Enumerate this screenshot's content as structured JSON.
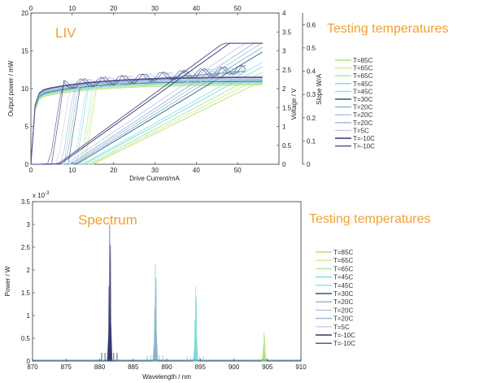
{
  "colors": {
    "accent": "#f0a030",
    "series": [
      "#b8e07a",
      "#d6e98a",
      "#a8e6a8",
      "#80d8d8",
      "#86e6ea",
      "#1f5f80",
      "#8ab4cc",
      "#a8c4e0",
      "#9ab8d8",
      "#c8c8ec",
      "#34366e",
      "#4a4a90"
    ]
  },
  "chart_data": [
    {
      "type": "line",
      "title": "LIV",
      "annotation": "Testing temperatures",
      "xlabel": "Drive Current/mA",
      "ylabel": "Output power / mW",
      "ylabel_right1": "Voltage / V",
      "ylabel_right2": "Slope W/A",
      "xlim": [
        0,
        60
      ],
      "ylim": [
        0,
        20
      ],
      "ylim_right1": [
        0,
        4
      ],
      "ylim_right2": [
        0,
        0.65
      ],
      "x_ticks": [
        "0",
        "10",
        "20",
        "30",
        "40",
        "50"
      ],
      "x_ticks_top": [
        "0",
        "10",
        "20",
        "30",
        "40",
        "50"
      ],
      "y_ticks": [
        "0",
        "5",
        "10",
        "15",
        "20"
      ],
      "y_ticks_right1": [
        "0",
        "0.5",
        "1",
        "1.5",
        "2",
        "2.5",
        "3",
        "3.5",
        "4"
      ],
      "y_ticks_right2": [
        "0",
        "0.1",
        "0.2",
        "0.3",
        "0.4",
        "0.5",
        "0.6"
      ],
      "legend": [
        "T=85C",
        "T=65C",
        "T=65C",
        "T=45C",
        "T=45C",
        "T=30C",
        "T=20C",
        "T=20C",
        "T=20C",
        "T=5C",
        "T=-10C",
        "T=-10C"
      ],
      "legend_placement": "right",
      "series_threshold_mA": [
        15,
        14.5,
        14,
        13,
        12.5,
        11,
        10.5,
        10,
        9.5,
        8.5,
        7,
        6.5
      ],
      "series_slope_mW_per_mA": [
        0.27,
        0.28,
        0.29,
        0.3,
        0.31,
        0.33,
        0.34,
        0.35,
        0.36,
        0.37,
        0.39,
        0.4
      ]
    },
    {
      "type": "area",
      "title": "Spectrum",
      "annotation": "Testing temperatures",
      "xlabel": "Wavelength / nm",
      "ylabel": "Power / W",
      "y_exponent": "x 10",
      "y_exponent_power": "-3",
      "xlim": [
        870,
        910
      ],
      "ylim": [
        0,
        3.5
      ],
      "x_ticks": [
        "870",
        "875",
        "880",
        "885",
        "890",
        "895",
        "900",
        "905",
        "910"
      ],
      "y_ticks": [
        "0",
        "0.5",
        "1",
        "1.5",
        "2",
        "2.5",
        "3",
        "3.5"
      ],
      "legend": [
        "T=85C",
        "T=65C",
        "T=65C",
        "T=45C",
        "T=45C",
        "T=30C",
        "T=20C",
        "T=20C",
        "T=20C",
        "T=5C",
        "T=-10C",
        "T=-10C"
      ],
      "legend_placement": "right",
      "peaks": [
        {
          "x": 904.5,
          "y": 0.65
        },
        {
          "x": 894.3,
          "y": 1.65
        },
        {
          "x": 888.3,
          "y": 2.15
        },
        {
          "x": 881.5,
          "y": 3.0
        }
      ]
    }
  ]
}
